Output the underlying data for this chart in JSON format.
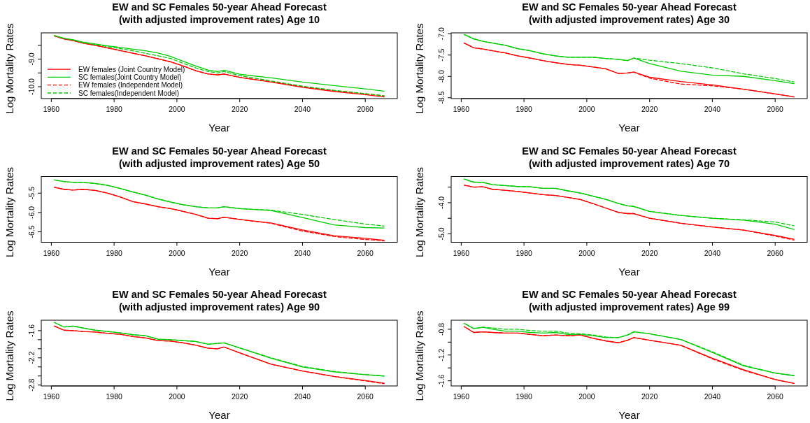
{
  "chart_data": [
    {
      "type": "line",
      "title": "EW and SC Females 50-year Ahead Forecast",
      "subtitle": "(with adjusted improvement rates) Age 10",
      "xlabel": "Year",
      "ylabel": "Log Mortality Rates",
      "legend": "bottom left",
      "x": [
        1961,
        1964,
        1967,
        1970,
        1974,
        1978,
        1982,
        1986,
        1990,
        1994,
        1998,
        2002,
        2006,
        2010,
        2013,
        2015,
        2020,
        2030,
        2040,
        2050,
        2060,
        2066
      ],
      "xlim": [
        1956.8,
        2070.2
      ],
      "xticks": [
        1960,
        1980,
        2000,
        2020,
        2040,
        2060
      ],
      "ylim": [
        -10.43,
        -8.05
      ],
      "yticks": [
        {
          "value": -8.5,
          "label": null
        },
        {
          "value": -9.0,
          "label": "-9.0"
        },
        {
          "value": -9.5,
          "label": null
        },
        {
          "value": -10.0,
          "label": "-10.0"
        }
      ],
      "series": [
        {
          "name": "EW females (Joint Country Model)",
          "color": "#ff0000",
          "line_style": "solid",
          "values": [
            -8.16,
            -8.27,
            -8.33,
            -8.42,
            -8.5,
            -8.6,
            -8.69,
            -8.79,
            -8.88,
            -8.99,
            -9.1,
            -9.25,
            -9.42,
            -9.54,
            -9.57,
            -9.54,
            -9.66,
            -9.83,
            -10.02,
            -10.17,
            -10.29,
            -10.37
          ]
        },
        {
          "name": "SC females(Joint Country Model)",
          "color": "#00cd00",
          "line_style": "solid",
          "values": [
            -8.15,
            -8.25,
            -8.3,
            -8.38,
            -8.45,
            -8.52,
            -8.58,
            -8.64,
            -8.7,
            -8.78,
            -8.9,
            -9.08,
            -9.25,
            -9.4,
            -9.45,
            -9.4,
            -9.55,
            -9.68,
            -9.83,
            -9.96,
            -10.08,
            -10.16
          ]
        },
        {
          "name": "EW females (Independent Model)",
          "color": "#ff0000",
          "line_style": "dashed",
          "values": [
            -8.16,
            -8.27,
            -8.33,
            -8.42,
            -8.5,
            -8.6,
            -8.69,
            -8.79,
            -8.88,
            -8.99,
            -9.1,
            -9.25,
            -9.42,
            -9.54,
            -9.57,
            -9.54,
            -9.66,
            -9.82,
            -10.0,
            -10.14,
            -10.26,
            -10.33
          ]
        },
        {
          "name": "SC females(Independent Model)",
          "color": "#00cd00",
          "line_style": "dashed",
          "values": [
            -8.15,
            -8.25,
            -8.31,
            -8.4,
            -8.47,
            -8.55,
            -8.62,
            -8.7,
            -8.79,
            -8.88,
            -8.98,
            -9.15,
            -9.32,
            -9.45,
            -9.5,
            -9.45,
            -9.6,
            -9.79,
            -9.98,
            -10.13,
            -10.25,
            -10.33
          ]
        }
      ]
    },
    {
      "type": "line",
      "title": "EW and SC Females 50-year Ahead Forecast",
      "subtitle": "(with adjusted improvement rates) Age 30",
      "xlabel": "Year",
      "ylabel": "Log Mortality Rates",
      "x": [
        1961,
        1964,
        1967,
        1970,
        1974,
        1978,
        1982,
        1986,
        1990,
        1994,
        1998,
        2002,
        2006,
        2010,
        2013,
        2015,
        2020,
        2030,
        2040,
        2050,
        2060,
        2066
      ],
      "xlim": [
        1956.8,
        2070.2
      ],
      "xticks": [
        1960,
        1980,
        2000,
        2020,
        2040,
        2060
      ],
      "ylim": [
        -8.52,
        -6.98
      ],
      "yticks": [
        {
          "value": -7.0,
          "label": "-7.0"
        },
        {
          "value": -7.5,
          "label": "-7.5"
        },
        {
          "value": -8.0,
          "label": "-8.0"
        },
        {
          "value": -8.5,
          "label": "-8.5"
        }
      ],
      "series": [
        {
          "color": "#ff0000",
          "line_style": "solid",
          "values": [
            -7.22,
            -7.33,
            -7.36,
            -7.4,
            -7.45,
            -7.52,
            -7.57,
            -7.63,
            -7.68,
            -7.72,
            -7.74,
            -7.78,
            -7.82,
            -7.93,
            -7.92,
            -7.9,
            -8.02,
            -8.12,
            -8.2,
            -8.3,
            -8.41,
            -8.48
          ]
        },
        {
          "color": "#00cd00",
          "line_style": "solid",
          "values": [
            -7.02,
            -7.12,
            -7.18,
            -7.22,
            -7.27,
            -7.35,
            -7.4,
            -7.47,
            -7.52,
            -7.55,
            -7.55,
            -7.55,
            -7.58,
            -7.6,
            -7.63,
            -7.57,
            -7.7,
            -7.88,
            -7.97,
            -8.0,
            -8.1,
            -8.17
          ]
        },
        {
          "color": "#ff0000",
          "line_style": "dashed",
          "values": [
            -7.22,
            -7.33,
            -7.36,
            -7.4,
            -7.45,
            -7.52,
            -7.57,
            -7.63,
            -7.68,
            -7.72,
            -7.74,
            -7.78,
            -7.82,
            -7.93,
            -7.92,
            -7.9,
            -8.04,
            -8.18,
            -8.22,
            -8.3,
            -8.41,
            -8.48
          ]
        },
        {
          "color": "#00cd00",
          "line_style": "dashed",
          "values": [
            -7.02,
            -7.12,
            -7.18,
            -7.22,
            -7.27,
            -7.35,
            -7.4,
            -7.47,
            -7.52,
            -7.55,
            -7.55,
            -7.55,
            -7.58,
            -7.6,
            -7.63,
            -7.57,
            -7.62,
            -7.7,
            -7.8,
            -7.94,
            -8.05,
            -8.13
          ]
        }
      ]
    },
    {
      "type": "line",
      "title": "EW and SC Females 50-year Ahead Forecast",
      "subtitle": "(with adjusted improvement rates) Age 50",
      "xlabel": "Year",
      "ylabel": "Log Mortality Rates",
      "x": [
        1961,
        1964,
        1967,
        1970,
        1974,
        1978,
        1982,
        1986,
        1990,
        1994,
        1998,
        2002,
        2006,
        2010,
        2013,
        2015,
        2020,
        2030,
        2040,
        2050,
        2060,
        2066
      ],
      "xlim": [
        1956.8,
        2070.2
      ],
      "xticks": [
        1960,
        1980,
        2000,
        2020,
        2040,
        2060
      ],
      "ylim": [
        -6.77,
        -5.07
      ],
      "yticks": [
        {
          "value": -5.5,
          "label": "-5.5"
        },
        {
          "value": -6.0,
          "label": "-6.0"
        },
        {
          "value": -6.5,
          "label": "-6.5"
        }
      ],
      "series": [
        {
          "color": "#ff0000",
          "line_style": "solid",
          "values": [
            -5.35,
            -5.4,
            -5.42,
            -5.4,
            -5.43,
            -5.5,
            -5.6,
            -5.72,
            -5.78,
            -5.85,
            -5.9,
            -5.97,
            -6.05,
            -6.15,
            -6.16,
            -6.12,
            -6.18,
            -6.27,
            -6.45,
            -6.6,
            -6.67,
            -6.72
          ]
        },
        {
          "color": "#00cd00",
          "line_style": "solid",
          "values": [
            -5.16,
            -5.2,
            -5.22,
            -5.22,
            -5.25,
            -5.3,
            -5.38,
            -5.47,
            -5.55,
            -5.65,
            -5.73,
            -5.8,
            -5.85,
            -5.88,
            -5.88,
            -5.85,
            -5.9,
            -5.95,
            -6.13,
            -6.32,
            -6.39,
            -6.4
          ]
        },
        {
          "color": "#ff0000",
          "line_style": "dashed",
          "values": [
            -5.35,
            -5.4,
            -5.42,
            -5.4,
            -5.43,
            -5.5,
            -5.6,
            -5.72,
            -5.78,
            -5.85,
            -5.9,
            -5.97,
            -6.05,
            -6.15,
            -6.16,
            -6.12,
            -6.18,
            -6.28,
            -6.48,
            -6.62,
            -6.7,
            -6.73
          ]
        },
        {
          "color": "#00cd00",
          "line_style": "dashed",
          "values": [
            -5.16,
            -5.2,
            -5.22,
            -5.22,
            -5.25,
            -5.3,
            -5.38,
            -5.47,
            -5.55,
            -5.65,
            -5.73,
            -5.8,
            -5.85,
            -5.88,
            -5.88,
            -5.85,
            -5.9,
            -5.94,
            -6.05,
            -6.18,
            -6.3,
            -6.35
          ]
        }
      ]
    },
    {
      "type": "line",
      "title": "EW and SC Females 50-year Ahead Forecast",
      "subtitle": "(with adjusted improvement rates) Age 70",
      "xlabel": "Year",
      "ylabel": "Log Mortality Rates",
      "x": [
        1961,
        1964,
        1967,
        1970,
        1974,
        1978,
        1982,
        1986,
        1990,
        1994,
        1998,
        2002,
        2006,
        2010,
        2013,
        2015,
        2020,
        2030,
        2040,
        2050,
        2060,
        2066
      ],
      "xlim": [
        1956.8,
        2070.2
      ],
      "xticks": [
        1960,
        1980,
        2000,
        2020,
        2040,
        2060
      ],
      "ylim": [
        -5.27,
        -3.16
      ],
      "yticks": [
        {
          "value": -3.5,
          "label": null
        },
        {
          "value": -4.0,
          "label": "-4.0"
        },
        {
          "value": -4.5,
          "label": null
        },
        {
          "value": -5.0,
          "label": "-5.0"
        }
      ],
      "series": [
        {
          "color": "#ff0000",
          "line_style": "solid",
          "values": [
            -3.44,
            -3.5,
            -3.49,
            -3.57,
            -3.6,
            -3.64,
            -3.69,
            -3.74,
            -3.77,
            -3.83,
            -3.9,
            -4.03,
            -4.17,
            -4.31,
            -4.35,
            -4.35,
            -4.5,
            -4.66,
            -4.78,
            -4.88,
            -5.05,
            -5.17
          ]
        },
        {
          "color": "#00cd00",
          "line_style": "solid",
          "values": [
            -3.24,
            -3.34,
            -3.35,
            -3.42,
            -3.45,
            -3.48,
            -3.49,
            -3.54,
            -3.54,
            -3.62,
            -3.69,
            -3.79,
            -3.89,
            -4.02,
            -4.1,
            -4.12,
            -4.28,
            -4.41,
            -4.5,
            -4.56,
            -4.69,
            -4.86
          ]
        },
        {
          "color": "#ff0000",
          "line_style": "dashed",
          "values": [
            -3.44,
            -3.5,
            -3.49,
            -3.57,
            -3.6,
            -3.64,
            -3.69,
            -3.74,
            -3.77,
            -3.83,
            -3.9,
            -4.03,
            -4.17,
            -4.31,
            -4.35,
            -4.35,
            -4.5,
            -4.66,
            -4.78,
            -4.88,
            -5.07,
            -5.2
          ]
        },
        {
          "color": "#00cd00",
          "line_style": "dashed",
          "values": [
            -3.24,
            -3.34,
            -3.35,
            -3.42,
            -3.45,
            -3.48,
            -3.49,
            -3.54,
            -3.54,
            -3.62,
            -3.69,
            -3.79,
            -3.89,
            -4.02,
            -4.1,
            -4.12,
            -4.28,
            -4.41,
            -4.5,
            -4.55,
            -4.62,
            -4.74
          ]
        }
      ]
    },
    {
      "type": "line",
      "title": "EW and SC Females 50-year Ahead Forecast",
      "subtitle": "(with adjusted improvement rates) Age 90",
      "xlabel": "Year",
      "ylabel": "Log Mortality Rates",
      "x": [
        1961,
        1964,
        1967,
        1970,
        1974,
        1978,
        1982,
        1986,
        1990,
        1994,
        1998,
        2002,
        2006,
        2010,
        2013,
        2015,
        2020,
        2030,
        2040,
        2050,
        2060,
        2066
      ],
      "xlim": [
        1956.8,
        2070.2
      ],
      "xticks": [
        1960,
        1980,
        2000,
        2020,
        2040,
        2060
      ],
      "ylim": [
        -2.82,
        -1.37
      ],
      "yticks": [
        {
          "value": -1.6,
          "label": "-1.6"
        },
        {
          "value": -1.8,
          "label": null
        },
        {
          "value": -2.0,
          "label": null
        },
        {
          "value": -2.2,
          "label": "-2.2"
        },
        {
          "value": -2.4,
          "label": null
        },
        {
          "value": -2.6,
          "label": null
        },
        {
          "value": -2.8,
          "label": "-2.8"
        }
      ],
      "series": [
        {
          "color": "#ff0000",
          "line_style": "solid",
          "values": [
            -1.5,
            -1.59,
            -1.6,
            -1.62,
            -1.63,
            -1.66,
            -1.68,
            -1.73,
            -1.76,
            -1.82,
            -1.83,
            -1.87,
            -1.92,
            -1.99,
            -2.0,
            -1.96,
            -2.09,
            -2.34,
            -2.49,
            -2.61,
            -2.7,
            -2.76
          ]
        },
        {
          "color": "#00cd00",
          "line_style": "solid",
          "values": [
            -1.42,
            -1.52,
            -1.5,
            -1.54,
            -1.59,
            -1.62,
            -1.65,
            -1.69,
            -1.71,
            -1.79,
            -1.8,
            -1.82,
            -1.84,
            -1.9,
            -1.88,
            -1.87,
            -1.98,
            -2.21,
            -2.4,
            -2.51,
            -2.57,
            -2.6
          ]
        },
        {
          "color": "#ff0000",
          "line_style": "dashed",
          "values": [
            -1.5,
            -1.59,
            -1.6,
            -1.62,
            -1.63,
            -1.66,
            -1.68,
            -1.73,
            -1.76,
            -1.82,
            -1.83,
            -1.87,
            -1.92,
            -1.99,
            -2.0,
            -1.96,
            -2.09,
            -2.34,
            -2.49,
            -2.61,
            -2.71,
            -2.77
          ]
        },
        {
          "color": "#00cd00",
          "line_style": "dashed",
          "values": [
            -1.42,
            -1.52,
            -1.5,
            -1.54,
            -1.59,
            -1.62,
            -1.65,
            -1.69,
            -1.71,
            -1.79,
            -1.8,
            -1.82,
            -1.84,
            -1.9,
            -1.88,
            -1.87,
            -1.98,
            -2.2,
            -2.39,
            -2.5,
            -2.57,
            -2.6
          ]
        }
      ]
    },
    {
      "type": "line",
      "title": "EW and SC Females 50-year Ahead Forecast",
      "subtitle": "(with adjusted improvement rates) Age 99",
      "xlabel": "Year",
      "ylabel": "Log Mortality Rates",
      "x": [
        1961,
        1964,
        1967,
        1970,
        1974,
        1978,
        1982,
        1986,
        1990,
        1994,
        1998,
        2002,
        2006,
        2010,
        2013,
        2015,
        2020,
        2030,
        2040,
        2050,
        2060,
        2066
      ],
      "xlim": [
        1956.8,
        2070.2
      ],
      "xticks": [
        1960,
        1980,
        2000,
        2020,
        2040,
        2060
      ],
      "ylim": [
        -1.68,
        -0.66
      ],
      "yticks": [
        {
          "value": -0.8,
          "label": "-0.8"
        },
        {
          "value": -1.0,
          "label": null
        },
        {
          "value": -1.2,
          "label": "-1.2"
        },
        {
          "value": -1.4,
          "label": null
        },
        {
          "value": -1.6,
          "label": "-1.6"
        }
      ],
      "series": [
        {
          "color": "#ff0000",
          "line_style": "solid",
          "values": [
            -0.76,
            -0.85,
            -0.84,
            -0.85,
            -0.86,
            -0.86,
            -0.88,
            -0.9,
            -0.89,
            -0.9,
            -0.89,
            -0.94,
            -0.98,
            -1.01,
            -0.97,
            -0.93,
            -0.97,
            -1.05,
            -1.25,
            -1.43,
            -1.58,
            -1.64
          ]
        },
        {
          "color": "#00cd00",
          "line_style": "solid",
          "values": [
            -0.71,
            -0.79,
            -0.77,
            -0.8,
            -0.83,
            -0.83,
            -0.85,
            -0.86,
            -0.85,
            -0.88,
            -0.88,
            -0.9,
            -0.93,
            -0.93,
            -0.89,
            -0.84,
            -0.87,
            -0.96,
            -1.16,
            -1.37,
            -1.48,
            -1.52
          ]
        },
        {
          "color": "#ff0000",
          "line_style": "dashed",
          "values": [
            -0.76,
            -0.85,
            -0.84,
            -0.85,
            -0.86,
            -0.86,
            -0.88,
            -0.9,
            -0.89,
            -0.9,
            -0.89,
            -0.94,
            -0.98,
            -1.01,
            -0.97,
            -0.93,
            -0.97,
            -1.05,
            -1.26,
            -1.44,
            -1.58,
            -1.64
          ]
        },
        {
          "color": "#00cd00",
          "line_style": "dashed",
          "values": [
            -0.71,
            -0.79,
            -0.77,
            -0.78,
            -0.8,
            -0.8,
            -0.82,
            -0.83,
            -0.83,
            -0.86,
            -0.87,
            -0.89,
            -0.92,
            -0.93,
            -0.89,
            -0.84,
            -0.87,
            -0.96,
            -1.15,
            -1.36,
            -1.48,
            -1.52
          ]
        }
      ]
    }
  ]
}
